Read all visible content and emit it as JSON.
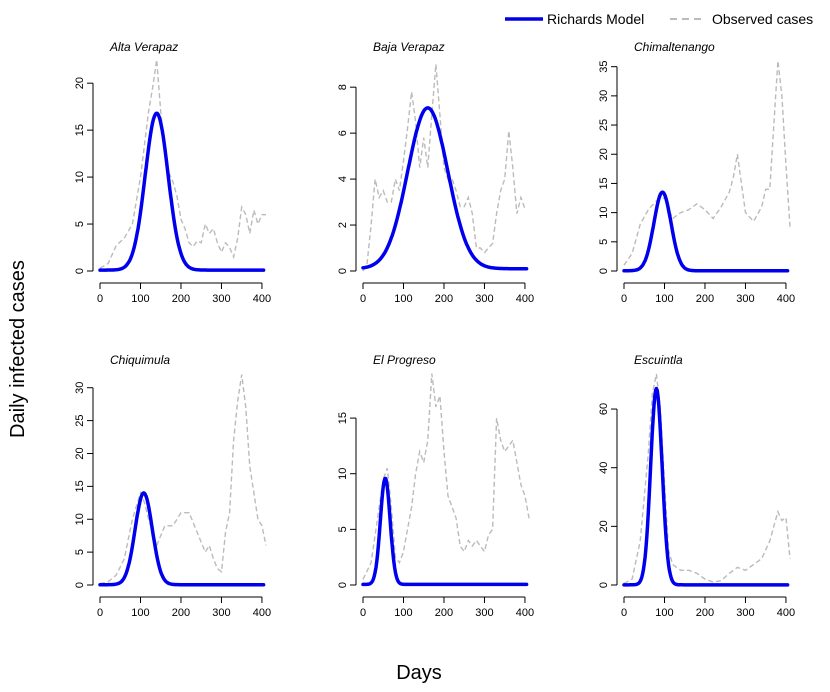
{
  "figure": {
    "xlabel": "Days",
    "ylabel": "Daily infected cases"
  },
  "legend": {
    "position": "top-right",
    "model_label": "Richards Model",
    "observed_label": "Observed cases",
    "model_color": "#0000ee",
    "observed_color": "#bbbbbb"
  },
  "chart_data": [
    {
      "type": "line",
      "title": "Alta Verapaz",
      "xlim": [
        0,
        410
      ],
      "ylim": [
        0,
        23
      ],
      "xticks": [
        0,
        100,
        200,
        300,
        400
      ],
      "yticks": [
        0,
        5,
        10,
        15,
        20
      ],
      "model_curve": {
        "peak_day": 140,
        "peak_value": 16.8,
        "days_rise": 40,
        "days_fall": 40,
        "base": 0.1
      },
      "series": [
        {
          "name": "Observed cases",
          "x": [
            0,
            20,
            40,
            60,
            80,
            100,
            120,
            130,
            140,
            150,
            160,
            170,
            180,
            190,
            200,
            210,
            220,
            230,
            240,
            250,
            260,
            270,
            280,
            290,
            300,
            310,
            320,
            330,
            340,
            350,
            360,
            370,
            380,
            390,
            400,
            410
          ],
          "values": [
            0.3,
            0.8,
            2.7,
            3.5,
            5.0,
            10.0,
            17.0,
            19.5,
            22.5,
            17.0,
            13.0,
            10.5,
            9.5,
            8.0,
            5.5,
            4.5,
            3.0,
            2.6,
            3.2,
            3.0,
            5.0,
            4.0,
            4.5,
            3.0,
            2.0,
            3.0,
            2.5,
            1.5,
            3.5,
            6.8,
            6.0,
            4.0,
            6.5,
            5.0,
            6.0,
            6.0
          ]
        }
      ]
    },
    {
      "type": "line",
      "title": "Baja Verapaz",
      "xlim": [
        0,
        410
      ],
      "ylim": [
        0,
        9.4
      ],
      "xticks": [
        0,
        100,
        200,
        300,
        400
      ],
      "yticks": [
        0,
        2,
        4,
        6,
        8
      ],
      "model_curve": {
        "peak_day": 160,
        "peak_value": 7.1,
        "days_rise": 70,
        "days_fall": 70,
        "base": 0.1
      },
      "series": [
        {
          "name": "Observed cases",
          "x": [
            0,
            10,
            20,
            30,
            40,
            50,
            60,
            70,
            80,
            90,
            100,
            110,
            120,
            130,
            140,
            150,
            160,
            170,
            180,
            190,
            200,
            210,
            220,
            230,
            240,
            250,
            260,
            270,
            280,
            290,
            300,
            310,
            320,
            330,
            340,
            350,
            360,
            370,
            380,
            390,
            400
          ],
          "values": [
            0.0,
            0.3,
            2.0,
            4.0,
            3.2,
            3.5,
            3.0,
            3.0,
            4.0,
            3.5,
            4.8,
            6.2,
            7.8,
            6.5,
            4.5,
            5.8,
            4.5,
            6.8,
            9.0,
            6.8,
            4.5,
            4.0,
            4.0,
            3.5,
            2.8,
            2.8,
            3.2,
            2.5,
            1.0,
            1.0,
            0.8,
            1.0,
            1.2,
            2.5,
            3.5,
            4.0,
            6.1,
            4.5,
            2.5,
            3.2,
            2.7
          ]
        }
      ]
    },
    {
      "type": "line",
      "title": "Chimaltenango",
      "xlim": [
        0,
        410
      ],
      "ylim": [
        0,
        37
      ],
      "xticks": [
        0,
        100,
        200,
        300,
        400
      ],
      "yticks": [
        0,
        5,
        10,
        15,
        20,
        25,
        30,
        35
      ],
      "model_curve": {
        "peak_day": 95,
        "peak_value": 13.5,
        "days_rise": 30,
        "days_fall": 30,
        "base": 0.05
      },
      "series": [
        {
          "name": "Observed cases",
          "x": [
            0,
            20,
            40,
            60,
            80,
            100,
            120,
            140,
            160,
            180,
            200,
            220,
            240,
            260,
            270,
            280,
            290,
            300,
            320,
            340,
            350,
            360,
            370,
            380,
            390,
            400,
            410
          ],
          "values": [
            1.0,
            3.0,
            8.0,
            10.5,
            12.0,
            12.5,
            9.0,
            10.0,
            10.5,
            11.5,
            10.5,
            9.0,
            11.0,
            13.5,
            16.0,
            20.0,
            15.0,
            10.0,
            8.5,
            11.0,
            14.0,
            14.0,
            25.0,
            36.0,
            30.0,
            18.0,
            7.5
          ]
        }
      ]
    },
    {
      "type": "line",
      "title": "Chiquimula",
      "xlim": [
        0,
        410
      ],
      "ylim": [
        0,
        33
      ],
      "xticks": [
        0,
        100,
        200,
        300,
        400
      ],
      "yticks": [
        0,
        5,
        10,
        15,
        20,
        25,
        30
      ],
      "model_curve": {
        "peak_day": 108,
        "peak_value": 14.0,
        "days_rise": 30,
        "days_fall": 30,
        "base": 0.05
      },
      "series": [
        {
          "name": "Observed cases",
          "x": [
            0,
            20,
            40,
            60,
            80,
            90,
            100,
            110,
            120,
            140,
            160,
            180,
            200,
            220,
            240,
            260,
            270,
            280,
            290,
            300,
            310,
            320,
            330,
            340,
            350,
            360,
            370,
            380,
            390,
            400,
            410
          ],
          "values": [
            0.2,
            0.5,
            1.5,
            4.0,
            10.0,
            12.0,
            14.0,
            12.5,
            10.0,
            6.0,
            9.0,
            9.0,
            11.0,
            11.0,
            8.0,
            5.0,
            6.0,
            4.0,
            2.5,
            2.0,
            8.0,
            11.0,
            22.0,
            28.0,
            32.0,
            27.0,
            18.0,
            14.0,
            10.0,
            9.0,
            6.0
          ]
        }
      ]
    },
    {
      "type": "line",
      "title": "El Progreso",
      "xlim": [
        0,
        410
      ],
      "ylim": [
        0,
        19.5
      ],
      "xticks": [
        0,
        100,
        200,
        300,
        400
      ],
      "yticks": [
        0,
        5,
        10,
        15
      ],
      "model_curve": {
        "peak_day": 55,
        "peak_value": 9.6,
        "days_rise": 17,
        "days_fall": 17,
        "base": 0.05
      },
      "series": [
        {
          "name": "Observed cases",
          "x": [
            0,
            20,
            40,
            50,
            60,
            70,
            80,
            90,
            100,
            110,
            120,
            130,
            140,
            150,
            160,
            170,
            180,
            190,
            200,
            210,
            220,
            230,
            240,
            250,
            260,
            270,
            280,
            290,
            300,
            310,
            320,
            330,
            340,
            350,
            360,
            370,
            380,
            390,
            400,
            410
          ],
          "values": [
            0.5,
            2.0,
            7.0,
            9.5,
            10.5,
            7.0,
            2.5,
            2.0,
            3.0,
            5.0,
            7.0,
            10.0,
            12.0,
            11.0,
            13.0,
            19.0,
            16.0,
            17.0,
            12.0,
            8.0,
            7.0,
            6.0,
            3.5,
            3.0,
            4.0,
            3.5,
            4.0,
            3.5,
            3.0,
            4.5,
            5.0,
            15.0,
            13.0,
            12.0,
            12.5,
            13.0,
            11.0,
            9.0,
            8.0,
            6.0
          ]
        }
      ]
    },
    {
      "type": "line",
      "title": "Escuintla",
      "xlim": [
        0,
        410
      ],
      "ylim": [
        0,
        74
      ],
      "xticks": [
        0,
        100,
        200,
        300,
        400
      ],
      "yticks": [
        0,
        20,
        40,
        60
      ],
      "model_curve": {
        "peak_day": 80,
        "peak_value": 67.0,
        "days_rise": 20,
        "days_fall": 20,
        "base": 0.05
      },
      "series": [
        {
          "name": "Observed cases",
          "x": [
            0,
            20,
            40,
            60,
            70,
            80,
            90,
            100,
            110,
            120,
            140,
            160,
            180,
            200,
            220,
            240,
            260,
            280,
            300,
            320,
            340,
            350,
            360,
            370,
            380,
            390,
            400,
            410
          ],
          "values": [
            0.5,
            2.0,
            15.0,
            45.0,
            65.0,
            72.0,
            60.0,
            35.0,
            12.0,
            7.0,
            5.0,
            5.0,
            4.0,
            2.0,
            1.0,
            1.5,
            4.0,
            6.0,
            5.0,
            7.0,
            9.0,
            12.0,
            15.0,
            20.0,
            25.0,
            22.0,
            23.0,
            9.0
          ]
        }
      ]
    }
  ]
}
